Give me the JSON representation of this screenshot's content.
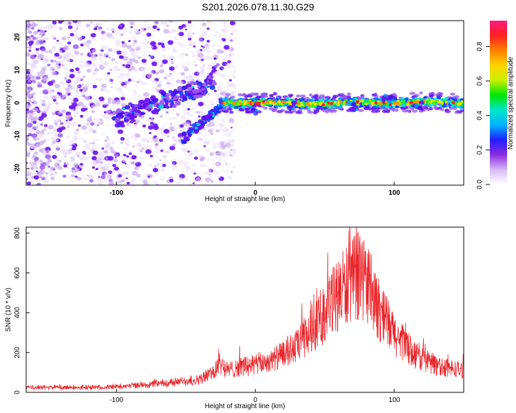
{
  "title": "S201.2026.078.11.30.G29",
  "colors": {
    "snr_line": "#e8262b",
    "spectrogram_palette": [
      "#ffffff",
      "#e8d8f6",
      "#c9a6ee",
      "#9b5ef0",
      "#6a12f2",
      "#3a14ee",
      "#1840ff",
      "#00a0ff",
      "#00e8e0",
      "#00e860",
      "#40f000",
      "#c8f000",
      "#ffe000",
      "#ff9000",
      "#ff2020",
      "#ff2080"
    ],
    "colorbar_gradient": [
      "#ffffff",
      "#d6b8f5",
      "#8a2be2",
      "#2020ff",
      "#00b4ff",
      "#00e6c8",
      "#00e600",
      "#c8f000",
      "#ffd200",
      "#ff8000",
      "#ff2020",
      "#ff1a80"
    ]
  },
  "chart_data": [
    {
      "type": "heatmap",
      "name": "spectrogram",
      "title": "S201.2026.078.11.30.G29",
      "xlabel": "Height of straight line (km)",
      "ylabel": "Frequency (Hz)",
      "xlim": [
        -165,
        150
      ],
      "ylim": [
        -25,
        25
      ],
      "x_ticks": [
        -100,
        0,
        100
      ],
      "x_tick_labels": [
        "-100",
        "0",
        "100"
      ],
      "y_ticks": [
        -20,
        -10,
        0,
        10,
        20
      ],
      "y_tick_labels": [
        "-20",
        "-10",
        "0",
        "10",
        "20"
      ],
      "colorbar": {
        "label": "Normalized spectral amplitude",
        "range": [
          0.0,
          0.95
        ],
        "ticks": [
          0.0,
          0.2,
          0.4,
          0.6,
          0.8
        ],
        "tick_labels": [
          "0.0",
          "0.2",
          "0.4",
          "0.6",
          "0.8"
        ]
      },
      "features": [
        {
          "name": "diffuse noise",
          "x_range": [
            -165,
            -30
          ],
          "freq_range": [
            -25,
            25
          ],
          "amplitude": 0.15
        },
        {
          "name": "upper oblique streak",
          "x": [
            -100,
            -30
          ],
          "freq": [
            -5,
            6
          ],
          "amplitude": 0.3
        },
        {
          "name": "lower oblique streak",
          "x": [
            -52,
            -22
          ],
          "freq": [
            -11,
            0
          ],
          "amplitude": 0.3
        },
        {
          "name": "steady carrier ridge",
          "x_range": [
            -25,
            150
          ],
          "freq": 0,
          "amplitude": 0.85
        }
      ]
    },
    {
      "type": "line",
      "name": "snr",
      "xlabel": "Height of straight line (km)",
      "ylabel": "SNR (10 * v/v)",
      "xlim": [
        -165,
        150
      ],
      "ylim": [
        0,
        830
      ],
      "x_ticks": [
        -100,
        0,
        100
      ],
      "x_tick_labels": [
        "-100",
        "0",
        "100"
      ],
      "y_ticks": [
        0,
        200,
        400,
        600,
        800
      ],
      "y_tick_labels": [
        "0",
        "200",
        "400",
        "600",
        "800"
      ],
      "series": [
        {
          "name": "SNR",
          "x": [
            -165,
            -140,
            -110,
            -80,
            -60,
            -40,
            -30,
            -25,
            -20,
            -10,
            0,
            10,
            20,
            30,
            40,
            50,
            60,
            70,
            75,
            80,
            90,
            100,
            110,
            120,
            130,
            140,
            150
          ],
          "values": [
            25,
            25,
            25,
            38,
            50,
            65,
            100,
            150,
            110,
            130,
            140,
            155,
            185,
            230,
            310,
            400,
            500,
            560,
            600,
            560,
            400,
            290,
            220,
            170,
            140,
            120,
            110
          ]
        }
      ]
    }
  ]
}
